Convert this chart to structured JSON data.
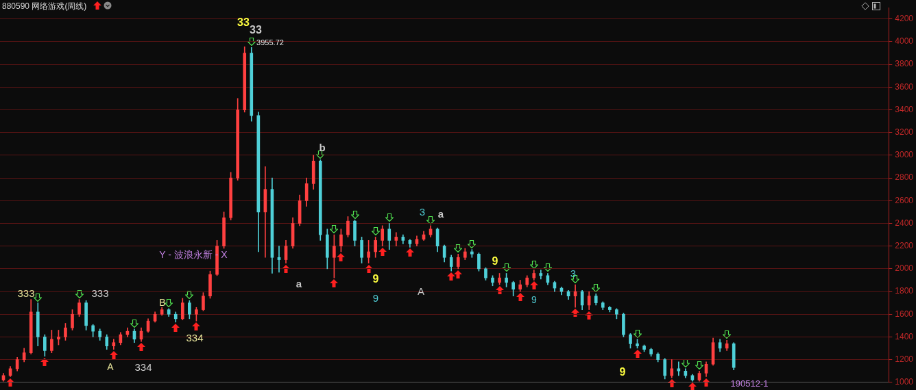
{
  "chart_data": {
    "type": "candlestick",
    "title": "880590 网络游戏(周线)",
    "categories": [
      null,
      null,
      null,
      null,
      null,
      null,
      null,
      null,
      null,
      null,
      null,
      null,
      null,
      null,
      null,
      null,
      null,
      null,
      null,
      null,
      null,
      null,
      null,
      null,
      null,
      null,
      null,
      null,
      null,
      null,
      null,
      null,
      null,
      null,
      null,
      null,
      null,
      null,
      null,
      null,
      null,
      null,
      null,
      null,
      null,
      null,
      null,
      null,
      null,
      null,
      null,
      null,
      null,
      null,
      null,
      null,
      null,
      null,
      null,
      null,
      null,
      null,
      null,
      null,
      null,
      null,
      null,
      null,
      null,
      null,
      null,
      null,
      null,
      null,
      null,
      null,
      null,
      null,
      null,
      null,
      null,
      null,
      null,
      null,
      null,
      null,
      null,
      null,
      null,
      null,
      null,
      null,
      null,
      null,
      null,
      null,
      null,
      null,
      null,
      null,
      null,
      null,
      null,
      null,
      null,
      null,
      null,
      null,
      null,
      null,
      null,
      null,
      null,
      null,
      null,
      null,
      null,
      null,
      null,
      null,
      null,
      null,
      null,
      null,
      null,
      null,
      null,
      null,
      null
    ],
    "ohlc": [
      [
        1020,
        1080,
        1010,
        1060
      ],
      [
        1060,
        1140,
        1050,
        1120
      ],
      [
        1120,
        1220,
        1100,
        1200
      ],
      [
        1200,
        1300,
        1180,
        1260
      ],
      [
        1260,
        1730,
        1250,
        1620
      ],
      [
        1620,
        1700,
        1320,
        1400
      ],
      [
        1400,
        1420,
        1230,
        1280
      ],
      [
        1280,
        1460,
        1260,
        1380
      ],
      [
        1380,
        1460,
        1330,
        1400
      ],
      [
        1400,
        1520,
        1370,
        1480
      ],
      [
        1480,
        1640,
        1460,
        1600
      ],
      [
        1600,
        1730,
        1580,
        1700
      ],
      [
        1700,
        1720,
        1460,
        1500
      ],
      [
        1500,
        1510,
        1400,
        1450
      ],
      [
        1450,
        1470,
        1370,
        1400
      ],
      [
        1400,
        1420,
        1290,
        1320
      ],
      [
        1320,
        1380,
        1290,
        1350
      ],
      [
        1350,
        1440,
        1330,
        1420
      ],
      [
        1420,
        1480,
        1400,
        1450
      ],
      [
        1450,
        1470,
        1350,
        1380
      ],
      [
        1380,
        1480,
        1360,
        1450
      ],
      [
        1450,
        1560,
        1440,
        1540
      ],
      [
        1540,
        1620,
        1530,
        1600
      ],
      [
        1600,
        1660,
        1590,
        1640
      ],
      [
        1640,
        1650,
        1580,
        1600
      ],
      [
        1600,
        1620,
        1530,
        1560
      ],
      [
        1560,
        1740,
        1550,
        1700
      ],
      [
        1700,
        1720,
        1560,
        1600
      ],
      [
        1600,
        1660,
        1540,
        1640
      ],
      [
        1640,
        1790,
        1630,
        1760
      ],
      [
        1760,
        1980,
        1740,
        1950
      ],
      [
        1950,
        2250,
        1940,
        2200
      ],
      [
        2200,
        2500,
        2180,
        2450
      ],
      [
        2450,
        2850,
        2430,
        2800
      ],
      [
        2800,
        3500,
        2780,
        3400
      ],
      [
        3400,
        3955.72,
        3380,
        3900
      ],
      [
        3900,
        3950,
        3300,
        3350
      ],
      [
        3350,
        3380,
        2150,
        2500
      ],
      [
        2500,
        2900,
        2100,
        2700
      ],
      [
        2700,
        2800,
        1960,
        2100
      ],
      [
        2100,
        2200,
        1970,
        2080
      ],
      [
        2080,
        2250,
        2050,
        2200
      ],
      [
        2200,
        2450,
        2180,
        2400
      ],
      [
        2400,
        2650,
        2380,
        2600
      ],
      [
        2600,
        2800,
        2550,
        2750
      ],
      [
        2750,
        3000,
        2700,
        2950
      ],
      [
        2950,
        2960,
        2250,
        2300
      ],
      [
        2300,
        2350,
        2000,
        2100
      ],
      [
        2100,
        2300,
        1920,
        2200
      ],
      [
        2200,
        2350,
        2150,
        2300
      ],
      [
        2300,
        2460,
        2280,
        2420
      ],
      [
        2420,
        2430,
        2200,
        2250
      ],
      [
        2250,
        2280,
        2050,
        2100
      ],
      [
        2100,
        2250,
        2050,
        2150
      ],
      [
        2150,
        2280,
        2100,
        2250
      ],
      [
        2250,
        2380,
        2200,
        2350
      ],
      [
        2350,
        2400,
        2170,
        2250
      ],
      [
        2250,
        2320,
        2200,
        2280
      ],
      [
        2280,
        2300,
        2220,
        2250
      ],
      [
        2250,
        2260,
        2190,
        2220
      ],
      [
        2220,
        2290,
        2200,
        2260
      ],
      [
        2260,
        2330,
        2250,
        2300
      ],
      [
        2300,
        2380,
        2280,
        2350
      ],
      [
        2350,
        2360,
        2150,
        2200
      ],
      [
        2200,
        2210,
        2060,
        2100
      ],
      [
        2100,
        2120,
        1980,
        2020
      ],
      [
        2020,
        2130,
        2000,
        2100
      ],
      [
        2100,
        2180,
        2080,
        2150
      ],
      [
        2150,
        2170,
        2100,
        2130
      ],
      [
        2130,
        2140,
        1980,
        2000
      ],
      [
        2000,
        2010,
        1900,
        1920
      ],
      [
        1920,
        1940,
        1850,
        1880
      ],
      [
        1880,
        1960,
        1860,
        1920
      ],
      [
        1920,
        1960,
        1840,
        1880
      ],
      [
        1880,
        1890,
        1760,
        1820
      ],
      [
        1820,
        1900,
        1800,
        1860
      ],
      [
        1860,
        1940,
        1840,
        1920
      ],
      [
        1920,
        1990,
        1900,
        1960
      ],
      [
        1960,
        1990,
        1910,
        1940
      ],
      [
        1940,
        1960,
        1860,
        1880
      ],
      [
        1880,
        1890,
        1800,
        1830
      ],
      [
        1830,
        1840,
        1770,
        1800
      ],
      [
        1800,
        1810,
        1730,
        1760
      ],
      [
        1760,
        1860,
        1660,
        1800
      ],
      [
        1800,
        1810,
        1640,
        1680
      ],
      [
        1680,
        1800,
        1640,
        1760
      ],
      [
        1760,
        1780,
        1680,
        1700
      ],
      [
        1700,
        1710,
        1640,
        1660
      ],
      [
        1660,
        1670,
        1620,
        1640
      ],
      [
        1640,
        1650,
        1560,
        1600
      ],
      [
        1600,
        1610,
        1400,
        1420
      ],
      [
        1420,
        1430,
        1300,
        1340
      ],
      [
        1340,
        1380,
        1300,
        1320
      ],
      [
        1320,
        1330,
        1270,
        1290
      ],
      [
        1290,
        1300,
        1230,
        1250
      ],
      [
        1250,
        1260,
        1180,
        1200
      ],
      [
        1200,
        1210,
        1030,
        1060
      ],
      [
        1060,
        1200,
        1040,
        1120
      ],
      [
        1120,
        1180,
        1060,
        1100
      ],
      [
        1100,
        1120,
        1040,
        1060
      ],
      [
        1060,
        1070,
        1010,
        1020
      ],
      [
        1020,
        1100,
        1010,
        1080
      ],
      [
        1080,
        1180,
        1050,
        1160
      ],
      [
        1160,
        1390,
        1150,
        1350
      ],
      [
        1350,
        1380,
        1270,
        1300
      ],
      [
        1300,
        1370,
        1280,
        1340
      ],
      [
        1340,
        1350,
        1110,
        1130
      ],
      null,
      null,
      null,
      null,
      null,
      null,
      null,
      null,
      null,
      null,
      null,
      null,
      null,
      null,
      null,
      null,
      null,
      null,
      null,
      null,
      null,
      null
    ],
    "colors": [
      "#ff4040",
      "#ff4040",
      "#ff4040",
      "#ff4040",
      "#ff4040",
      "#4fd0d8",
      "#4fd0d8",
      "#ff4040",
      "#ff4040",
      "#ff4040",
      "#ff4040",
      "#ff4040",
      "#4fd0d8",
      "#4fd0d8",
      "#4fd0d8",
      "#4fd0d8",
      "#ff4040",
      "#ff4040",
      "#ff4040",
      "#4fd0d8",
      "#ff4040",
      "#ff4040",
      "#ff4040",
      "#ff4040",
      "#4fd0d8",
      "#4fd0d8",
      "#ff4040",
      "#4fd0d8",
      "#ff4040",
      "#ff4040",
      "#ff4040",
      "#ff4040",
      "#ff4040",
      "#ff4040",
      "#ff4040",
      "#ff4040",
      "#4fd0d8",
      "#4fd0d8",
      "#ff4040",
      "#4fd0d8",
      "#4fd0d8",
      "#ff4040",
      "#ff4040",
      "#ff4040",
      "#ff4040",
      "#ff4040",
      "#4fd0d8",
      "#4fd0d8",
      "#ff4040",
      "#ff4040",
      "#ff4040",
      "#4fd0d8",
      "#4fd0d8",
      "#ff4040",
      "#ff4040",
      "#ff4040",
      "#4fd0d8",
      "#ff4040",
      "#4fd0d8",
      "#4fd0d8",
      "#ff4040",
      "#ff4040",
      "#ff4040",
      "#4fd0d8",
      "#4fd0d8",
      "#4fd0d8",
      "#ff4040",
      "#ff4040",
      "#4fd0d8",
      "#4fd0d8",
      "#4fd0d8",
      "#4fd0d8",
      "#ff4040",
      "#4fd0d8",
      "#4fd0d8",
      "#ff4040",
      "#ff4040",
      "#ff4040",
      "#4fd0d8",
      "#4fd0d8",
      "#4fd0d8",
      "#4fd0d8",
      "#4fd0d8",
      "#ff4040",
      "#4fd0d8",
      "#ff4040",
      "#4fd0d8",
      "#4fd0d8",
      "#4fd0d8",
      "#4fd0d8",
      "#4fd0d8",
      "#4fd0d8",
      "#4fd0d8",
      "#4fd0d8",
      "#4fd0d8",
      "#4fd0d8",
      "#4fd0d8",
      "#ff4040",
      "#4fd0d8",
      "#4fd0d8",
      "#4fd0d8",
      "#ff4040",
      "#ff4040",
      "#ff4040",
      "#4fd0d8",
      "#ff4040",
      "#4fd0d8",
      null,
      null,
      null,
      null,
      null,
      null,
      null,
      null,
      null,
      null,
      null,
      null,
      null,
      null,
      null,
      null,
      null,
      null,
      null,
      null,
      null,
      null
    ],
    "ylim": [
      1000,
      4300
    ],
    "yticks": [
      1000,
      1200,
      1400,
      1600,
      1800,
      2000,
      2200,
      2400,
      2600,
      2800,
      3000,
      3200,
      3400,
      3600,
      3800,
      4000,
      4200
    ],
    "grid": "y",
    "tick_labels": "y",
    "annotations": [
      "333",
      "333",
      "A",
      "334",
      "B",
      "334",
      "Y - 波浪永新 - X",
      "33",
      "33",
      "3955.72",
      "a",
      "b",
      "9",
      "9",
      "A",
      "3",
      "a",
      "9",
      "9",
      "3",
      "9",
      "190512-1"
    ]
  }
}
